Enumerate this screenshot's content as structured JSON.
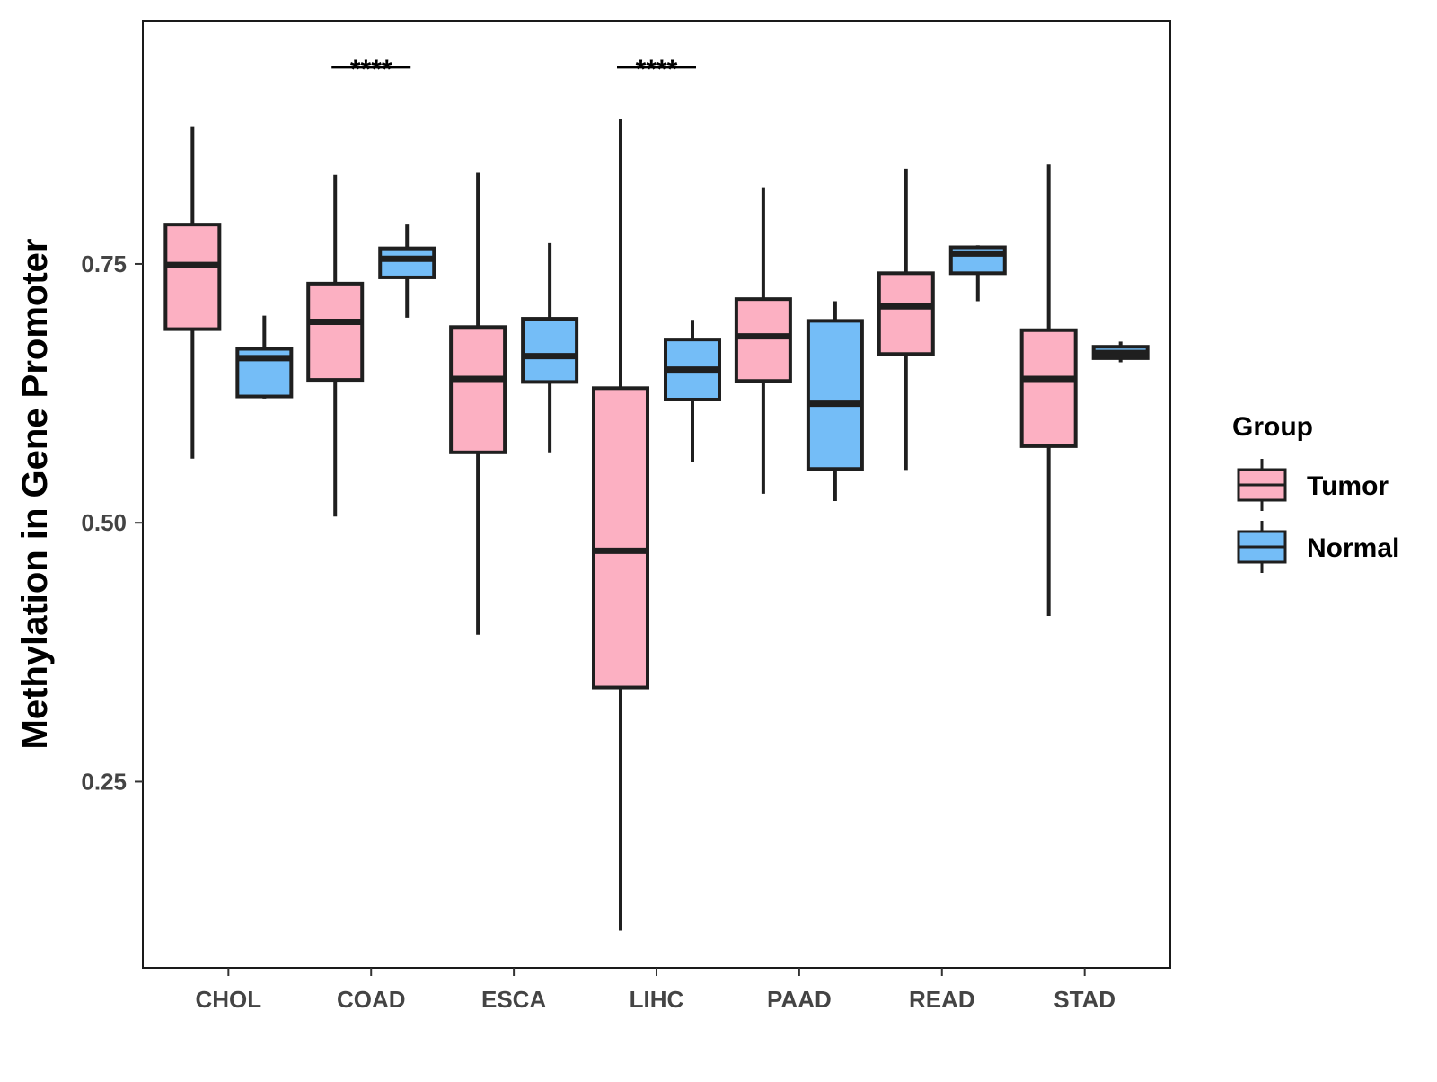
{
  "chart_data": {
    "type": "box",
    "title": "",
    "xlabel": "",
    "ylabel": "Methylation in Gene Promoter",
    "ylim": [
      0.07,
      0.985
    ],
    "yticks": [
      0.25,
      0.5,
      0.75
    ],
    "ytick_labels": [
      "0.25",
      "0.50",
      "0.75"
    ],
    "categories": [
      "CHOL",
      "COAD",
      "ESCA",
      "LIHC",
      "PAAD",
      "READ",
      "STAD"
    ],
    "legend": {
      "title": "Group",
      "position": "right",
      "entries": [
        {
          "name": "Tumor",
          "color": "#fcb0c2"
        },
        {
          "name": "Normal",
          "color": "#74bdf7"
        }
      ]
    },
    "series": [
      {
        "name": "Tumor",
        "color": "#fcb0c2",
        "boxes": [
          {
            "category": "CHOL",
            "min": 0.562,
            "q1": 0.687,
            "median": 0.749,
            "q3": 0.788,
            "max": 0.883
          },
          {
            "category": "COAD",
            "min": 0.506,
            "q1": 0.638,
            "median": 0.694,
            "q3": 0.731,
            "max": 0.836
          },
          {
            "category": "ESCA",
            "min": 0.392,
            "q1": 0.568,
            "median": 0.639,
            "q3": 0.689,
            "max": 0.838
          },
          {
            "category": "LIHC",
            "min": 0.106,
            "q1": 0.341,
            "median": 0.473,
            "q3": 0.63,
            "max": 0.89
          },
          {
            "category": "PAAD",
            "min": 0.528,
            "q1": 0.637,
            "median": 0.68,
            "q3": 0.716,
            "max": 0.824
          },
          {
            "category": "READ",
            "min": 0.551,
            "q1": 0.663,
            "median": 0.709,
            "q3": 0.741,
            "max": 0.842
          },
          {
            "category": "STAD",
            "min": 0.41,
            "q1": 0.574,
            "median": 0.639,
            "q3": 0.686,
            "max": 0.846
          }
        ]
      },
      {
        "name": "Normal",
        "color": "#74bdf7",
        "boxes": [
          {
            "category": "CHOL",
            "min": 0.62,
            "q1": 0.622,
            "median": 0.659,
            "q3": 0.668,
            "max": 0.7
          },
          {
            "category": "COAD",
            "min": 0.698,
            "q1": 0.737,
            "median": 0.755,
            "q3": 0.765,
            "max": 0.788
          },
          {
            "category": "ESCA",
            "min": 0.568,
            "q1": 0.636,
            "median": 0.661,
            "q3": 0.697,
            "max": 0.77
          },
          {
            "category": "LIHC",
            "min": 0.559,
            "q1": 0.619,
            "median": 0.648,
            "q3": 0.677,
            "max": 0.696
          },
          {
            "category": "PAAD",
            "min": 0.521,
            "q1": 0.552,
            "median": 0.615,
            "q3": 0.695,
            "max": 0.714
          },
          {
            "category": "READ",
            "min": 0.714,
            "q1": 0.741,
            "median": 0.76,
            "q3": 0.766,
            "max": 0.768
          },
          {
            "category": "STAD",
            "min": 0.655,
            "q1": 0.659,
            "median": 0.664,
            "q3": 0.67,
            "max": 0.675
          }
        ]
      }
    ],
    "annotations": [
      {
        "category": "COAD",
        "text": "****",
        "y": 0.94
      },
      {
        "category": "LIHC",
        "text": "****",
        "y": 0.94
      }
    ],
    "grid": false
  }
}
